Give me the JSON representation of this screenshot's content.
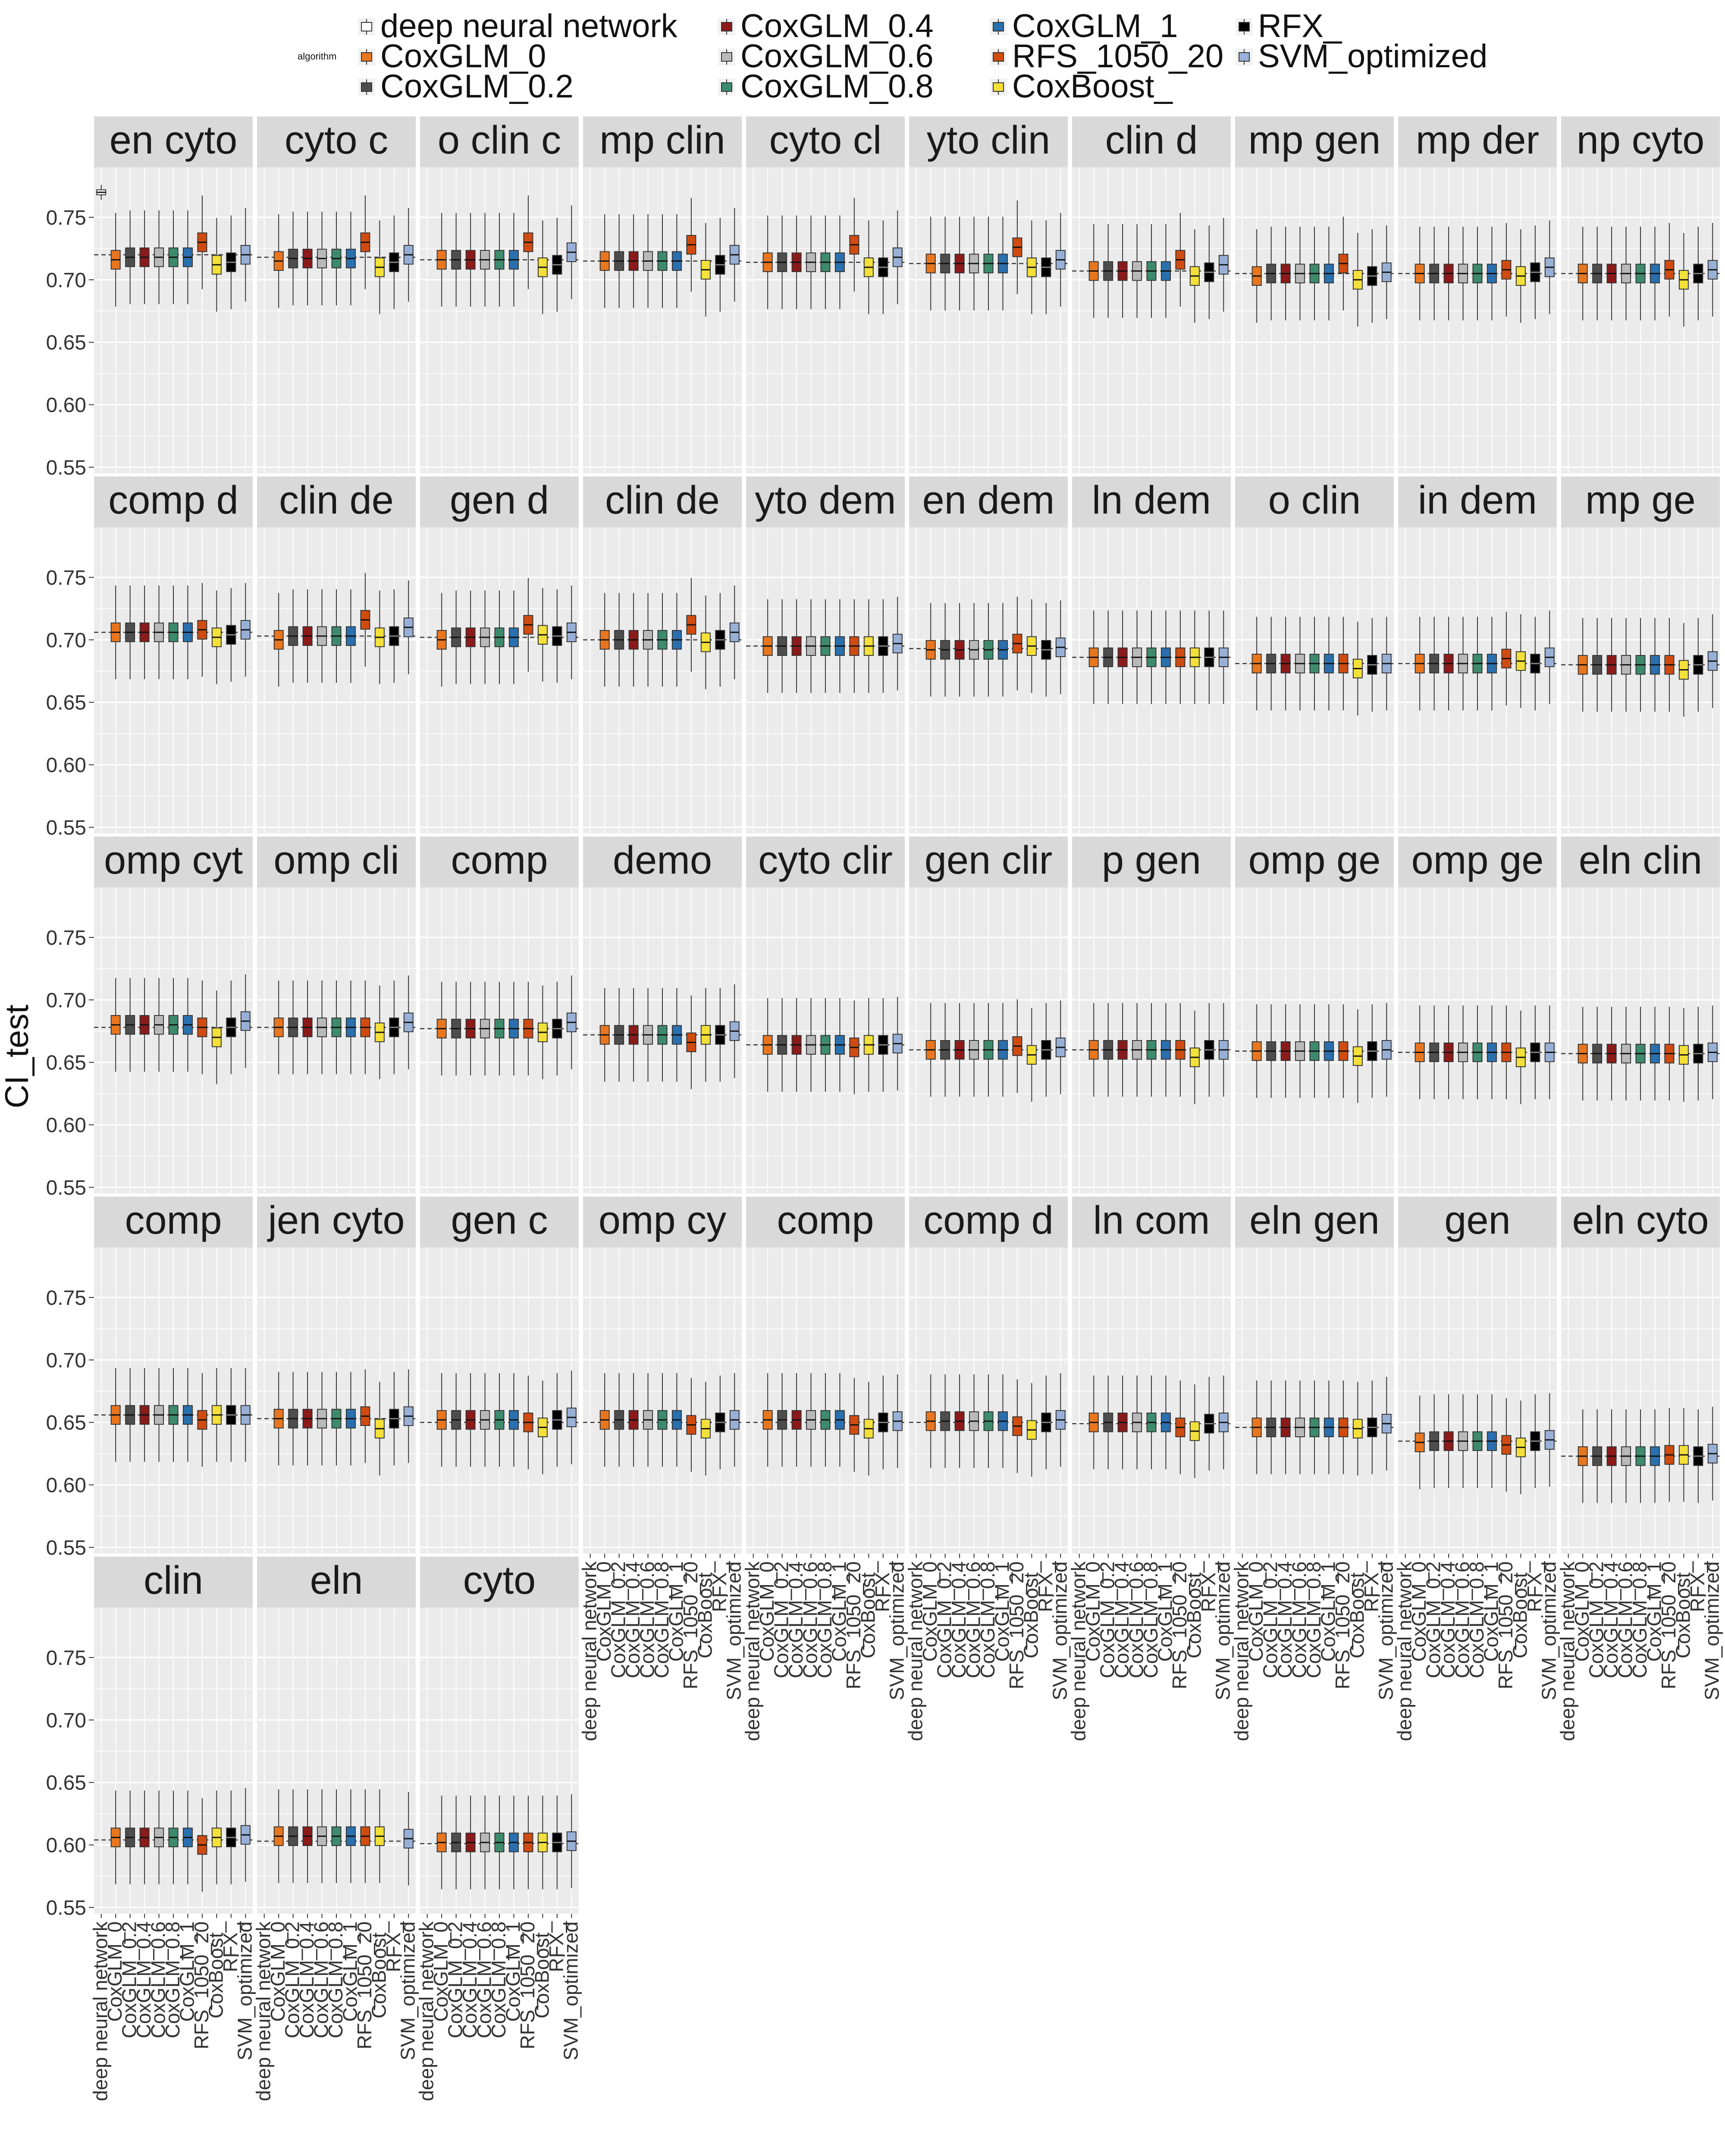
{
  "chart_data": {
    "type": "box",
    "ylabel": "CI_test",
    "ylim": [
      0.545,
      0.79
    ],
    "y_ticks": [
      "0.55",
      "0.60",
      "0.65",
      "0.70",
      "0.75"
    ],
    "grid": true,
    "legend": {
      "title": "algorithm",
      "placement": "top",
      "entries": [
        {
          "name": "deep neural network",
          "color": "#ffffff"
        },
        {
          "name": "CoxGLM_0",
          "color": "#e8761f"
        },
        {
          "name": "CoxGLM_0.2",
          "color": "#4d4d4d"
        },
        {
          "name": "CoxGLM_0.4",
          "color": "#8b1a1a"
        },
        {
          "name": "CoxGLM_0.6",
          "color": "#b9b9b9"
        },
        {
          "name": "CoxGLM_0.8",
          "color": "#3d8a6d"
        },
        {
          "name": "CoxGLM_1",
          "color": "#2a6fae"
        },
        {
          "name": "RFS_1050_20",
          "color": "#d04b10"
        },
        {
          "name": "CoxBoost_",
          "color": "#f3e03a"
        },
        {
          "name": "RFX_",
          "color": "#000000"
        },
        {
          "name": "SVM_optimized",
          "color": "#98b0d6"
        }
      ]
    },
    "categories": [
      "deep neural network",
      "CoxGLM_0",
      "CoxGLM_0.2",
      "CoxGLM_0.4",
      "CoxGLM_0.6",
      "CoxGLM_0.8",
      "CoxGLM_1",
      "RFS_1050_20",
      "CoxBoost_",
      "RFX_",
      "SVM_optimized"
    ],
    "panels": [
      {
        "strip": "en  cyto",
        "ref": 0.72,
        "medians": [
          0.77,
          0.716,
          0.718,
          0.718,
          0.718,
          0.718,
          0.718,
          0.73,
          0.712,
          0.714,
          0.72
        ]
      },
      {
        "strip": "cyto  c",
        "ref": 0.718,
        "medians": [
          null,
          0.715,
          0.717,
          0.717,
          0.717,
          0.717,
          0.717,
          0.73,
          0.71,
          0.714,
          0.72
        ]
      },
      {
        "strip": "o  clin  c",
        "ref": 0.716,
        "medians": [
          null,
          0.716,
          0.716,
          0.716,
          0.716,
          0.716,
          0.716,
          0.73,
          0.71,
          0.712,
          0.722
        ]
      },
      {
        "strip": "mp  clin",
        "ref": 0.715,
        "medians": [
          null,
          0.715,
          0.715,
          0.715,
          0.715,
          0.715,
          0.715,
          0.728,
          0.708,
          0.712,
          0.72
        ]
      },
      {
        "strip": "cyto  cl",
        "ref": 0.714,
        "medians": [
          null,
          0.714,
          0.714,
          0.714,
          0.714,
          0.714,
          0.714,
          0.728,
          0.71,
          0.71,
          0.718
        ]
      },
      {
        "strip": "yto  clin",
        "ref": 0.713,
        "medians": [
          null,
          0.713,
          0.713,
          0.713,
          0.713,
          0.713,
          0.713,
          0.726,
          0.71,
          0.71,
          0.716
        ]
      },
      {
        "strip": "clin  d",
        "ref": 0.707,
        "medians": [
          null,
          0.707,
          0.707,
          0.707,
          0.707,
          0.707,
          0.707,
          0.716,
          0.703,
          0.706,
          0.712
        ]
      },
      {
        "strip": "mp  gen",
        "ref": 0.705,
        "medians": [
          null,
          0.703,
          0.705,
          0.705,
          0.705,
          0.705,
          0.705,
          0.713,
          0.7,
          0.703,
          0.706
        ]
      },
      {
        "strip": "mp  der",
        "ref": 0.705,
        "medians": [
          null,
          0.705,
          0.705,
          0.705,
          0.705,
          0.705,
          0.705,
          0.708,
          0.703,
          0.706,
          0.71
        ]
      },
      {
        "strip": "np  cyto",
        "ref": 0.705,
        "medians": [
          null,
          0.705,
          0.705,
          0.705,
          0.705,
          0.705,
          0.705,
          0.708,
          0.7,
          0.705,
          0.708
        ]
      },
      {
        "strip": "comp  d",
        "ref": 0.706,
        "medians": [
          null,
          0.706,
          0.706,
          0.706,
          0.706,
          0.706,
          0.706,
          0.708,
          0.702,
          0.704,
          0.708
        ]
      },
      {
        "strip": "clin  de",
        "ref": 0.703,
        "medians": [
          null,
          0.7,
          0.703,
          0.703,
          0.703,
          0.703,
          0.703,
          0.716,
          0.702,
          0.703,
          0.71
        ]
      },
      {
        "strip": "gen  d",
        "ref": 0.702,
        "medians": [
          null,
          0.7,
          0.702,
          0.702,
          0.702,
          0.702,
          0.702,
          0.712,
          0.704,
          0.703,
          0.706
        ]
      },
      {
        "strip": "clin  de",
        "ref": 0.7,
        "medians": [
          null,
          0.7,
          0.7,
          0.7,
          0.7,
          0.7,
          0.7,
          0.712,
          0.698,
          0.7,
          0.706
        ]
      },
      {
        "strip": "yto  dem",
        "ref": 0.695,
        "medians": [
          null,
          0.695,
          0.695,
          0.695,
          0.695,
          0.695,
          0.695,
          0.695,
          0.695,
          0.695,
          0.697
        ]
      },
      {
        "strip": "en  dem",
        "ref": 0.693,
        "medians": [
          null,
          0.692,
          0.692,
          0.692,
          0.692,
          0.692,
          0.692,
          0.697,
          0.695,
          0.692,
          0.694
        ]
      },
      {
        "strip": "ln  dem",
        "ref": 0.686,
        "medians": [
          null,
          0.686,
          0.686,
          0.686,
          0.686,
          0.686,
          0.686,
          0.686,
          0.686,
          0.686,
          0.686
        ]
      },
      {
        "strip": "o  clin",
        "ref": 0.681,
        "medians": [
          null,
          0.681,
          0.681,
          0.681,
          0.681,
          0.681,
          0.681,
          0.681,
          0.677,
          0.68,
          0.681
        ]
      },
      {
        "strip": "in  dem",
        "ref": 0.681,
        "medians": [
          null,
          0.681,
          0.681,
          0.681,
          0.681,
          0.681,
          0.681,
          0.685,
          0.683,
          0.681,
          0.686
        ]
      },
      {
        "strip": "mp  ge",
        "ref": 0.68,
        "medians": [
          null,
          0.68,
          0.68,
          0.68,
          0.68,
          0.68,
          0.68,
          0.68,
          0.676,
          0.68,
          0.683
        ]
      },
      {
        "strip": "omp  cyt",
        "ref": 0.678,
        "medians": [
          null,
          0.68,
          0.68,
          0.68,
          0.68,
          0.68,
          0.68,
          0.678,
          0.67,
          0.678,
          0.683
        ]
      },
      {
        "strip": "omp  cli",
        "ref": 0.678,
        "medians": [
          null,
          0.678,
          0.678,
          0.678,
          0.678,
          0.678,
          0.678,
          0.678,
          0.674,
          0.678,
          0.682
        ]
      },
      {
        "strip": "comp",
        "ref": 0.677,
        "medians": [
          null,
          0.677,
          0.677,
          0.677,
          0.677,
          0.677,
          0.677,
          0.677,
          0.674,
          0.677,
          0.682
        ]
      },
      {
        "strip": "demo",
        "ref": 0.672,
        "medians": [
          null,
          0.672,
          0.672,
          0.672,
          0.672,
          0.672,
          0.672,
          0.666,
          0.672,
          0.672,
          0.675
        ]
      },
      {
        "strip": "cyto  clir",
        "ref": 0.664,
        "medians": [
          null,
          0.664,
          0.664,
          0.664,
          0.664,
          0.664,
          0.664,
          0.662,
          0.664,
          0.664,
          0.665
        ]
      },
      {
        "strip": "gen  clir",
        "ref": 0.66,
        "medians": [
          null,
          0.66,
          0.66,
          0.66,
          0.66,
          0.66,
          0.66,
          0.663,
          0.656,
          0.66,
          0.662
        ]
      },
      {
        "strip": "p  gen",
        "ref": 0.66,
        "medians": [
          null,
          0.66,
          0.66,
          0.66,
          0.66,
          0.66,
          0.66,
          0.66,
          0.654,
          0.66,
          0.66
        ]
      },
      {
        "strip": "omp  ge",
        "ref": 0.659,
        "medians": [
          null,
          0.659,
          0.659,
          0.659,
          0.659,
          0.659,
          0.659,
          0.659,
          0.655,
          0.659,
          0.66
        ]
      },
      {
        "strip": "omp  ge",
        "ref": 0.658,
        "medians": [
          null,
          0.658,
          0.658,
          0.658,
          0.658,
          0.658,
          0.658,
          0.658,
          0.654,
          0.658,
          0.658
        ]
      },
      {
        "strip": "eln  clin",
        "ref": 0.657,
        "medians": [
          null,
          0.657,
          0.657,
          0.657,
          0.657,
          0.657,
          0.657,
          0.657,
          0.656,
          0.657,
          0.658
        ]
      },
      {
        "strip": "comp",
        "ref": 0.656,
        "medians": [
          null,
          0.656,
          0.656,
          0.656,
          0.656,
          0.656,
          0.656,
          0.652,
          0.656,
          0.656,
          0.656
        ]
      },
      {
        "strip": "jen  cyto",
        "ref": 0.653,
        "medians": [
          null,
          0.653,
          0.653,
          0.653,
          0.653,
          0.653,
          0.653,
          0.655,
          0.645,
          0.653,
          0.655
        ]
      },
      {
        "strip": "gen  c",
        "ref": 0.65,
        "medians": [
          null,
          0.652,
          0.652,
          0.652,
          0.652,
          0.652,
          0.652,
          0.65,
          0.646,
          0.652,
          0.654
        ]
      },
      {
        "strip": "omp  cy",
        "ref": 0.65,
        "medians": [
          null,
          0.652,
          0.652,
          0.652,
          0.652,
          0.652,
          0.652,
          0.648,
          0.645,
          0.65,
          0.652
        ]
      },
      {
        "strip": "comp",
        "ref": 0.65,
        "medians": [
          null,
          0.652,
          0.652,
          0.652,
          0.652,
          0.652,
          0.652,
          0.648,
          0.645,
          0.65,
          0.651
        ]
      },
      {
        "strip": "comp  d",
        "ref": 0.65,
        "medians": [
          null,
          0.651,
          0.651,
          0.651,
          0.651,
          0.651,
          0.651,
          0.647,
          0.644,
          0.65,
          0.652
        ]
      },
      {
        "strip": "ln  com",
        "ref": 0.649,
        "medians": [
          null,
          0.65,
          0.65,
          0.65,
          0.65,
          0.65,
          0.65,
          0.646,
          0.643,
          0.649,
          0.65
        ]
      },
      {
        "strip": "eln  gen",
        "ref": 0.646,
        "medians": [
          null,
          0.646,
          0.646,
          0.646,
          0.646,
          0.646,
          0.646,
          0.646,
          0.645,
          0.646,
          0.649
        ]
      },
      {
        "strip": "gen",
        "ref": 0.635,
        "medians": [
          null,
          0.634,
          0.635,
          0.635,
          0.635,
          0.635,
          0.635,
          0.632,
          0.63,
          0.635,
          0.636
        ]
      },
      {
        "strip": "eln  cyto",
        "ref": 0.623,
        "medians": [
          null,
          0.623,
          0.623,
          0.623,
          0.623,
          0.623,
          0.623,
          0.624,
          0.624,
          0.623,
          0.625
        ]
      },
      {
        "strip": "clin",
        "ref": 0.604,
        "medians": [
          null,
          0.606,
          0.606,
          0.606,
          0.606,
          0.606,
          0.606,
          0.6,
          0.606,
          0.606,
          0.608
        ]
      },
      {
        "strip": "eln",
        "ref": 0.603,
        "medians": [
          null,
          0.607,
          0.607,
          0.607,
          0.607,
          0.607,
          0.607,
          0.607,
          0.607,
          null,
          0.605
        ]
      },
      {
        "strip": "cyto",
        "ref": 0.601,
        "medians": [
          null,
          0.602,
          0.602,
          0.602,
          0.602,
          0.602,
          0.602,
          0.602,
          0.602,
          0.602,
          0.603
        ]
      }
    ]
  }
}
